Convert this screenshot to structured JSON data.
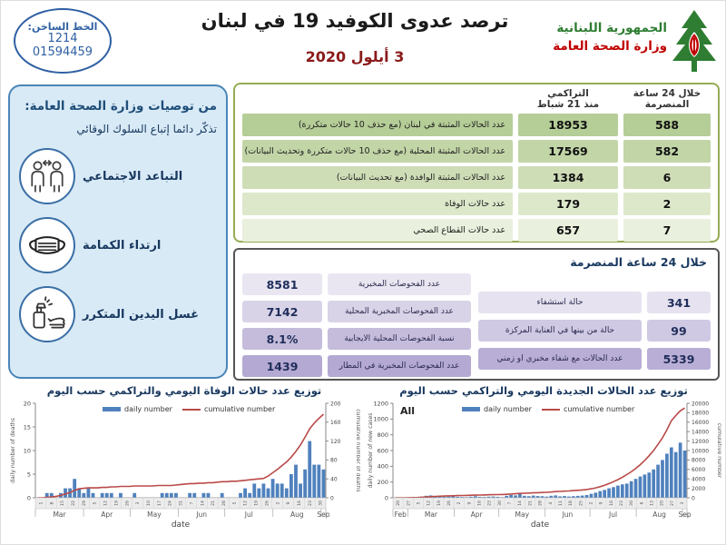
{
  "header": {
    "hotline_label": "الخط الساخن:",
    "hotline_number1": "1214",
    "hotline_number2": "01594459",
    "title": "ترصد عدوى الكوفيد 19 في لبنان",
    "date": "3 أيلول 2020",
    "org_line1": "الجمهورية اللبنانية",
    "org_line2": "وزارة الصحة العامة"
  },
  "sidebar": {
    "title": "من توصيات وزارة الصحة العامة:",
    "subtitle": "تذكّر دائما إتباع السلوك الوقائي",
    "items": [
      {
        "label": "التباعد الاجتماعي",
        "icon": "social-distancing-icon"
      },
      {
        "label": "ارتداء الكمامة",
        "icon": "face-mask-icon"
      },
      {
        "label": "غسل اليدين المتكرر",
        "icon": "hand-washing-icon"
      }
    ]
  },
  "cases_table": {
    "col_24h": [
      "خلال 24 ساعة",
      "المنصرمة"
    ],
    "col_cum": [
      "التراكمي",
      "منذ 21 شباط"
    ],
    "rows": [
      {
        "label": "عدد الحالات المثبتة في لبنان  (مع حذف 10 حالات متكررة)",
        "h24": "588",
        "cum": "18953"
      },
      {
        "label": "عدد الحالات المثبتة المحلية (مع حذف 10 حالات متكررة وتحديث البيانات)",
        "h24": "582",
        "cum": "17569"
      },
      {
        "label": "عدد الحالات المثبتة الوافدة (مع تحديث البيانات)",
        "h24": "6",
        "cum": "1384"
      },
      {
        "label": "عدد حالات الوفاة",
        "h24": "2",
        "cum": "179"
      },
      {
        "label": "عدد حالات القطاع الصحي",
        "h24": "7",
        "cum": "657"
      }
    ],
    "row_colors": [
      "#b5cd97",
      "#c2d5a7",
      "#cfddb7",
      "#dde8cb",
      "#e9f0dd"
    ]
  },
  "stats_box": {
    "header": "خلال 24 ساعة المنصرمة",
    "right_rows": [
      {
        "value": "341",
        "label": "حالة استشفاء"
      },
      {
        "value": "99",
        "label": "حالة من بينها في العناية المركزة"
      },
      {
        "value": "5339",
        "label": "عدد الحالات مع شفاء مخبري او زمني"
      }
    ],
    "left_rows": [
      {
        "label": "عدد الفحوصات المخبرية",
        "value": "8581"
      },
      {
        "label": "عدد الفحوصات المخبرية المحلية",
        "value": "7142"
      },
      {
        "label": "نسبة الفحوصات المحلية الايجابية",
        "value": "8.1%"
      },
      {
        "label": "عدد الفحوصات المخبرية في المطار",
        "value": "1439"
      }
    ],
    "right_row_colors": [
      "#e6e2f0",
      "#d0c9e3",
      "#b9aed6"
    ],
    "left_row_colors": [
      "#e9e6f2",
      "#d9d3e8",
      "#c5bcdc",
      "#b4a9d2"
    ]
  },
  "chart_data": [
    {
      "type": "bar+line",
      "title": "توزيع عدد حالات  الوفاة اليومي والتراكمي حسب اليوم",
      "corner_label": "",
      "legend": [
        "daily number",
        "cumulative number"
      ],
      "bar_color": "#4f81bd",
      "line_color": "#b94a48",
      "ylabel_left": "daily number of deaths",
      "ylabel_right": "cumulative number of deaths",
      "xlabel": "date",
      "ylim_left": [
        0,
        20
      ],
      "ylim_right": [
        0,
        200
      ],
      "yticks_left": [
        0,
        5,
        10,
        15,
        20
      ],
      "yticks_right": [
        0,
        40,
        80,
        120,
        160,
        200
      ],
      "months": [
        {
          "name": "Mar",
          "days": 31
        },
        {
          "name": "Apr",
          "days": 30
        },
        {
          "name": "May",
          "days": 31
        },
        {
          "name": "Jun",
          "days": 30
        },
        {
          "name": "Jul",
          "days": 31
        },
        {
          "name": "Aug",
          "days": 31
        },
        {
          "name": "Sep",
          "days": 3
        }
      ],
      "day_ticks": [
        "1",
        "8",
        "15",
        "22",
        "29",
        "5",
        "12",
        "19",
        "26",
        "3",
        "10",
        "17",
        "24",
        "31",
        "7",
        "14",
        "21",
        "28",
        "5",
        "12",
        "19",
        "26",
        "2",
        "9",
        "16",
        "23",
        "30"
      ],
      "daily": [
        0,
        0,
        1,
        1,
        0,
        1,
        2,
        2,
        4,
        2,
        1,
        2,
        1,
        0,
        1,
        1,
        1,
        0,
        1,
        0,
        0,
        1,
        0,
        0,
        0,
        0,
        0,
        1,
        1,
        1,
        1,
        0,
        0,
        1,
        1,
        0,
        1,
        1,
        0,
        0,
        1,
        0,
        0,
        0,
        1,
        2,
        1,
        3,
        2,
        3,
        2,
        4,
        3,
        3,
        2,
        5,
        7,
        3,
        6,
        12,
        7,
        7,
        6
      ],
      "cumulative": [
        0,
        0,
        1,
        2,
        3,
        5,
        8,
        11,
        16,
        19,
        20,
        21,
        21,
        21,
        22,
        22,
        23,
        23,
        24,
        24,
        24,
        25,
        25,
        25,
        25,
        25,
        26,
        26,
        26,
        26,
        27,
        28,
        29,
        30,
        30,
        31,
        31,
        32,
        32,
        33,
        34,
        34,
        35,
        35,
        36,
        37,
        38,
        39,
        40,
        41,
        46,
        53,
        60,
        68,
        76,
        86,
        98,
        112,
        128,
        146,
        158,
        168,
        177
      ]
    },
    {
      "type": "bar+line",
      "title": "توزيع عدد الحالات الجديدة اليومي والتراكمي حسب اليوم",
      "corner_label": "All",
      "legend": [
        "daily number",
        "cumulative number"
      ],
      "bar_color": "#4f81bd",
      "line_color": "#b94a48",
      "ylabel_left": "daily number of new cases",
      "ylabel_right": "cumulative number",
      "xlabel": "date",
      "ylim_left": [
        0,
        1200
      ],
      "ylim_right": [
        0,
        20000
      ],
      "yticks_left": [
        0,
        200,
        400,
        600,
        800,
        1000,
        1200
      ],
      "yticks_right": [
        0,
        2000,
        4000,
        6000,
        8000,
        10000,
        12000,
        14000,
        16000,
        18000,
        20000
      ],
      "months": [
        {
          "name": "Feb",
          "days": 10
        },
        {
          "name": "Mar",
          "days": 31
        },
        {
          "name": "Apr",
          "days": 30
        },
        {
          "name": "May",
          "days": 31
        },
        {
          "name": "Jun",
          "days": 30
        },
        {
          "name": "Jul",
          "days": 31
        },
        {
          "name": "Aug",
          "days": 31
        },
        {
          "name": "Sep",
          "days": 3
        }
      ],
      "day_ticks": [
        "20",
        "27",
        "5",
        "12",
        "19",
        "26",
        "2",
        "9",
        "16",
        "23",
        "30",
        "7",
        "14",
        "21",
        "28",
        "4",
        "11",
        "18",
        "25",
        "2",
        "9",
        "16",
        "23",
        "30",
        "6",
        "13",
        "20",
        "27",
        "3"
      ],
      "daily": [
        1,
        1,
        2,
        3,
        6,
        10,
        15,
        25,
        30,
        20,
        18,
        12,
        15,
        18,
        12,
        10,
        8,
        14,
        20,
        12,
        10,
        14,
        16,
        12,
        8,
        25,
        35,
        30,
        60,
        25,
        20,
        28,
        22,
        20,
        15,
        25,
        30,
        18,
        22,
        16,
        20,
        24,
        28,
        35,
        50,
        65,
        85,
        100,
        120,
        135,
        155,
        170,
        180,
        210,
        240,
        270,
        295,
        320,
        360,
        420,
        480,
        560,
        640,
        580,
        700,
        600
      ],
      "cumulative": [
        1,
        2,
        4,
        10,
        30,
        60,
        110,
        170,
        230,
        280,
        320,
        360,
        400,
        430,
        460,
        480,
        500,
        530,
        560,
        580,
        600,
        630,
        660,
        680,
        700,
        740,
        790,
        840,
        930,
        970,
        1000,
        1040,
        1080,
        1110,
        1160,
        1220,
        1300,
        1350,
        1400,
        1450,
        1510,
        1580,
        1660,
        1750,
        1900,
        2100,
        2350,
        2650,
        3000,
        3400,
        3850,
        4350,
        4900,
        5500,
        6200,
        7000,
        7900,
        8900,
        10000,
        11300,
        12700,
        14400,
        16300,
        17400,
        18400,
        19000
      ]
    }
  ]
}
